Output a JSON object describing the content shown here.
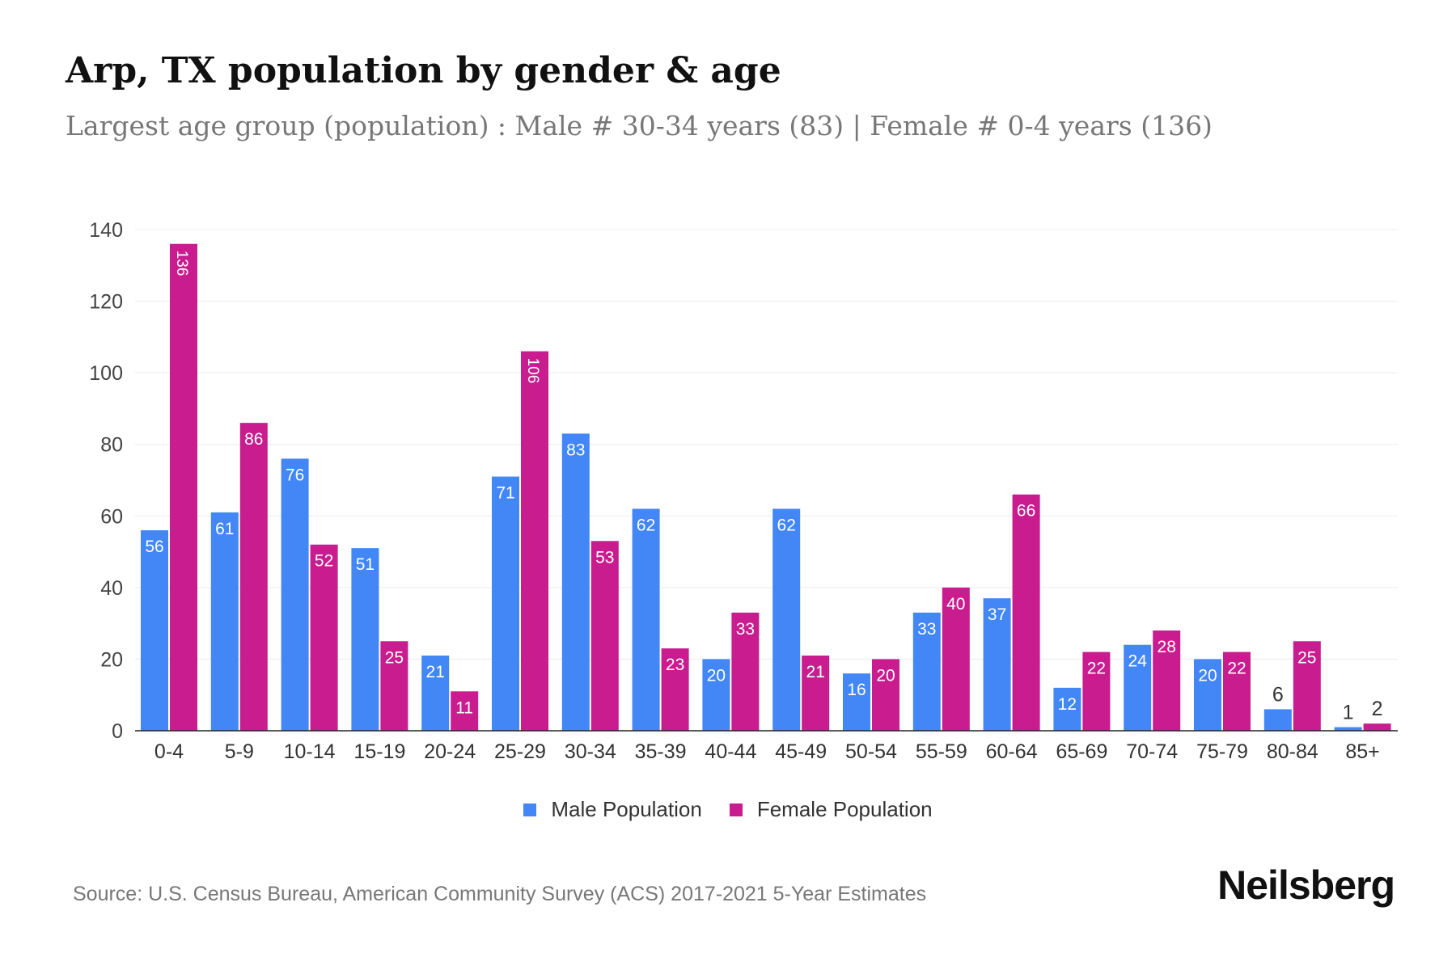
{
  "chart_data": {
    "type": "bar",
    "title": "Arp, TX population by gender & age",
    "subtitle": "Largest age group (population) : Male # 30-34 years (83) | Female # 0-4 years (136)",
    "categories": [
      "0-4",
      "5-9",
      "10-14",
      "15-19",
      "20-24",
      "25-29",
      "30-34",
      "35-39",
      "40-44",
      "45-49",
      "50-54",
      "55-59",
      "60-64",
      "65-69",
      "70-74",
      "75-79",
      "80-84",
      "85+"
    ],
    "series": [
      {
        "name": "Male Population",
        "color": "#4287f5",
        "values": [
          56,
          61,
          76,
          51,
          21,
          71,
          83,
          62,
          20,
          62,
          16,
          33,
          37,
          12,
          24,
          20,
          6,
          1
        ]
      },
      {
        "name": "Female Population",
        "color": "#c91c8f",
        "values": [
          136,
          86,
          52,
          25,
          11,
          106,
          53,
          23,
          33,
          21,
          20,
          40,
          66,
          22,
          28,
          22,
          25,
          2
        ]
      }
    ],
    "ylim": [
      0,
      140
    ],
    "yticks": [
      0,
      20,
      40,
      60,
      80,
      100,
      120,
      140
    ],
    "grid": true,
    "legend": "bottom"
  },
  "source": "Source: U.S. Census Bureau, American Community Survey (ACS) 2017-2021 5-Year Estimates",
  "logo": "Neilsberg"
}
